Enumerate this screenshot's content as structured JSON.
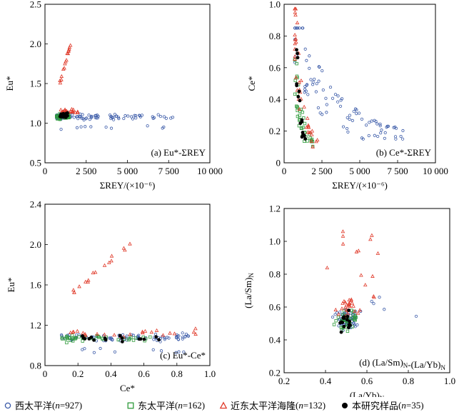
{
  "chart_data": [
    {
      "type": "scatter",
      "panel_label": "(a) Eu*-ΣREY",
      "xlabel": "ΣREY/(×10⁻⁶)",
      "ylabel": "Eu*",
      "xlim": [
        0,
        10000
      ],
      "ylim": [
        0.5,
        2.5
      ],
      "xticks": [
        "0",
        "2 500",
        "5 000",
        "7 500",
        "10 000"
      ],
      "xtick_values": [
        0,
        2500,
        5000,
        7500,
        10000
      ],
      "yticks": [
        "0.5",
        "1.0",
        "1.5",
        "2.0",
        "2.5"
      ],
      "ytick_values": [
        0.5,
        1.0,
        1.5,
        2.0,
        2.5
      ],
      "series": [
        {
          "name": "西太平洋",
          "n": 927,
          "cluster": {
            "x": [
              700,
              8000
            ],
            "y": [
              0.92,
              1.25
            ],
            "center": 1.08
          }
        },
        {
          "name": "东太平洋",
          "n": 162,
          "cluster": {
            "x": [
              700,
              1500
            ],
            "y": [
              1.0,
              1.2
            ],
            "center": 1.08
          }
        },
        {
          "name": "近东太平洋海隆",
          "n": 132,
          "cluster": {
            "x": [
              900,
              2000
            ],
            "y": [
              1.05,
              2.02
            ],
            "center": 1.15
          }
        },
        {
          "name": "本研究样品",
          "n": 35,
          "cluster": {
            "x": [
              900,
              1400
            ],
            "y": [
              1.0,
              1.25
            ],
            "center": 1.1
          }
        }
      ]
    },
    {
      "type": "scatter",
      "panel_label": "(b) Ce*-ΣREY",
      "xlabel": "ΣREY/(×10⁻⁶)",
      "ylabel": "Ce*",
      "xlim": [
        0,
        10000
      ],
      "ylim": [
        0,
        1.0
      ],
      "xticks": [
        "0",
        "2 500",
        "5 000",
        "7 500",
        "10 000"
      ],
      "xtick_values": [
        0,
        2500,
        5000,
        7500,
        10000
      ],
      "yticks": [
        "0",
        "0.2",
        "0.4",
        "0.6",
        "0.8",
        "1.0"
      ],
      "ytick_values": [
        0,
        0.2,
        0.4,
        0.6,
        0.8,
        1.0
      ],
      "series": [
        {
          "name": "西太平洋",
          "n": 927,
          "cluster": {
            "x": [
              700,
              8000
            ],
            "y": [
              0.15,
              0.85
            ],
            "center": 0.35
          }
        },
        {
          "name": "东太平洋",
          "n": 162,
          "cluster": {
            "x": [
              700,
              2000
            ],
            "y": [
              0.1,
              0.65
            ],
            "center": 0.25
          }
        },
        {
          "name": "近东太平洋海隆",
          "n": 132,
          "cluster": {
            "x": [
              700,
              2200
            ],
            "y": [
              0.1,
              0.97
            ],
            "center": 0.3
          }
        },
        {
          "name": "本研究样品",
          "n": 35,
          "cluster": {
            "x": [
              800,
              1500
            ],
            "y": [
              0.15,
              0.72
            ],
            "center": 0.3
          }
        }
      ]
    },
    {
      "type": "scatter",
      "panel_label": "(c) Eu*-Ce*",
      "xlabel": "Ce*",
      "ylabel": "Eu*",
      "xlim": [
        0,
        1.0
      ],
      "ylim": [
        0.8,
        2.4
      ],
      "xticks": [
        "0",
        "0.2",
        "0.4",
        "0.6",
        "0.8",
        "1.0"
      ],
      "xtick_values": [
        0,
        0.2,
        0.4,
        0.6,
        0.8,
        1.0
      ],
      "yticks": [
        "0.8",
        "1.2",
        "1.6",
        "2.0",
        "2.4"
      ],
      "ytick_values": [
        0.8,
        1.2,
        1.6,
        2.0,
        2.4
      ],
      "series": [
        {
          "name": "西太平洋",
          "n": 927,
          "cluster": {
            "x": [
              0.1,
              0.87
            ],
            "y": [
              0.92,
              1.25
            ],
            "center": 1.08
          }
        },
        {
          "name": "东太平洋",
          "n": 162,
          "cluster": {
            "x": [
              0.1,
              0.65
            ],
            "y": [
              1.0,
              1.15
            ],
            "center": 1.07
          }
        },
        {
          "name": "近东太平洋海隆",
          "n": 132,
          "cluster": {
            "x": [
              0.15,
              0.97
            ],
            "y": [
              1.05,
              2.0
            ],
            "center": 1.12
          }
        },
        {
          "name": "本研究样品",
          "n": 35,
          "cluster": {
            "x": [
              0.13,
              0.72
            ],
            "y": [
              1.0,
              1.15
            ],
            "center": 1.07
          }
        }
      ]
    },
    {
      "type": "scatter",
      "panel_label": "(d) (La/Sm)N-(La/Yb)N",
      "xlabel": "(La/Yb)N",
      "ylabel": "(La/Sm)N",
      "xlim": [
        0.2,
        1.0
      ],
      "ylim": [
        0.2,
        1.2
      ],
      "xticks": [
        "0.2",
        "0.4",
        "0.6",
        "0.8",
        "1.0"
      ],
      "xtick_values": [
        0.2,
        0.4,
        0.6,
        0.8,
        1.0
      ],
      "yticks": [
        "0.2",
        "0.4",
        "0.6",
        "0.8",
        "1.0",
        "1.2"
      ],
      "ytick_values": [
        0.2,
        0.4,
        0.6,
        0.8,
        1.0,
        1.2
      ],
      "series": [
        {
          "name": "西太平洋",
          "n": 927,
          "cluster": {
            "x": [
              0.42,
              0.87
            ],
            "y": [
              0.42,
              0.9
            ],
            "center": 0.52
          }
        },
        {
          "name": "东太平洋",
          "n": 162,
          "cluster": {
            "x": [
              0.42,
              0.6
            ],
            "y": [
              0.42,
              0.65
            ],
            "center": 0.52
          }
        },
        {
          "name": "近东太平洋海隆",
          "n": 132,
          "cluster": {
            "x": [
              0.38,
              0.7
            ],
            "y": [
              0.42,
              1.12
            ],
            "center": 0.6
          }
        },
        {
          "name": "本研究样品",
          "n": 35,
          "cluster": {
            "x": [
              0.4,
              0.58
            ],
            "y": [
              0.45,
              0.65
            ],
            "center": 0.52
          }
        }
      ]
    }
  ],
  "legend": [
    {
      "name": "西太平洋",
      "n": "927",
      "symbol": "circle",
      "color": "#3a5aa8"
    },
    {
      "name": "东太平洋",
      "n": "162",
      "symbol": "square",
      "color": "#2e9a3a"
    },
    {
      "name": "近东太平洋海隆",
      "n": "132",
      "symbol": "triangle",
      "color": "#e03a2a"
    },
    {
      "name": "本研究样品",
      "n": "35",
      "symbol": "filled-circle",
      "color": "#000000"
    }
  ]
}
